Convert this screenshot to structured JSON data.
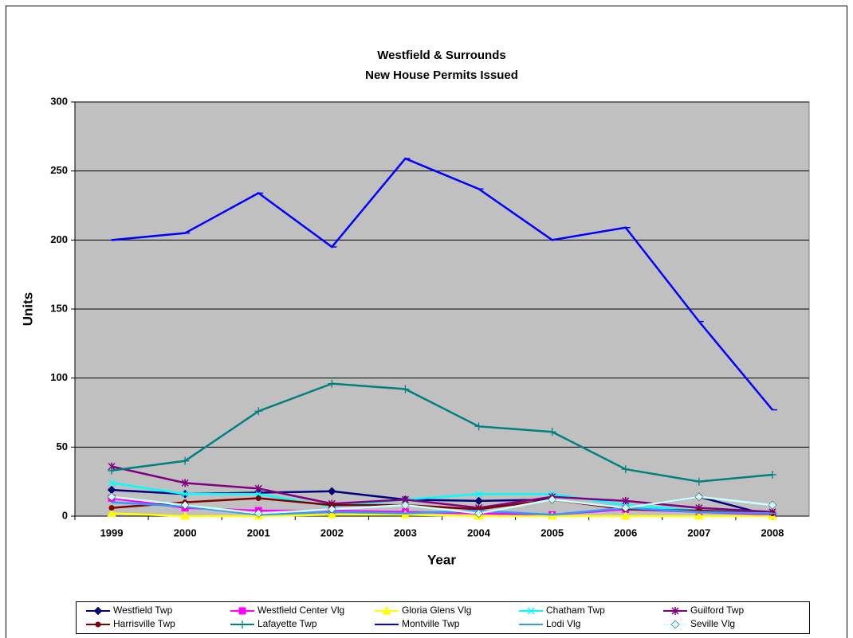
{
  "chart_data": {
    "type": "line",
    "title": "Westfield & Surrounds",
    "subtitle": "New House Permits Issued",
    "x_label": "Year",
    "y_label": "Units",
    "categories": [
      "1999",
      "2000",
      "2001",
      "2002",
      "2003",
      "2004",
      "2005",
      "2006",
      "2007",
      "2008"
    ],
    "ylim": [
      0,
      300
    ],
    "yticks": [
      0,
      50,
      100,
      150,
      200,
      250,
      300
    ],
    "grid": true,
    "legend": "bottom",
    "series": [
      {
        "name": "Westfield Twp",
        "color": "#000080",
        "marker": "diamond",
        "values": [
          19,
          16,
          17,
          18,
          12,
          11,
          12,
          6,
          14,
          0
        ]
      },
      {
        "name": "Westfield Center Vlg",
        "color": "#ff00ff",
        "marker": "square",
        "values": [
          13,
          6,
          4,
          4,
          3,
          2,
          1,
          5,
          3,
          1
        ]
      },
      {
        "name": "Gloria Glens Vlg",
        "color": "#ffff00",
        "marker": "triangle",
        "values": [
          2,
          0,
          0,
          1,
          1,
          0,
          0,
          0,
          0,
          0
        ]
      },
      {
        "name": "Chatham Twp",
        "color": "#00ffff",
        "marker": "x",
        "values": [
          24,
          16,
          16,
          7,
          12,
          16,
          16,
          8,
          4,
          3
        ]
      },
      {
        "name": "Guilford Twp",
        "color": "#800080",
        "marker": "star",
        "values": [
          36,
          24,
          20,
          9,
          12,
          6,
          14,
          11,
          6,
          3
        ]
      },
      {
        "name": "Harrisville Twp",
        "color": "#800000",
        "marker": "circle",
        "values": [
          6,
          10,
          13,
          8,
          8,
          5,
          12,
          5,
          4,
          2
        ]
      },
      {
        "name": "Lafayette Twp",
        "color": "#008080",
        "marker": "plus",
        "values": [
          33,
          40,
          76,
          96,
          92,
          65,
          61,
          34,
          25,
          30
        ]
      },
      {
        "name": "Montville Twp",
        "color": "#0000ff",
        "marker": "dash",
        "values": [
          200,
          205,
          234,
          195,
          259,
          237,
          200,
          209,
          141,
          77
        ]
      },
      {
        "name": "Lodi Vlg",
        "color": "#3399ff",
        "marker": "dash",
        "values": [
          10,
          7,
          1,
          3,
          2,
          4,
          1,
          6,
          3,
          2
        ]
      },
      {
        "name": "Seville Vlg",
        "color": "#ccffff",
        "marker": "diamond",
        "values": [
          14,
          8,
          2,
          5,
          8,
          2,
          12,
          6,
          14,
          8
        ]
      }
    ]
  }
}
